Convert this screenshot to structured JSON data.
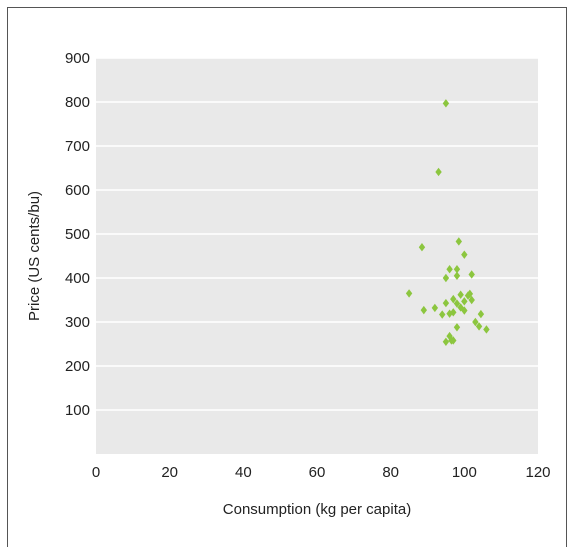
{
  "chart_data": {
    "type": "scatter",
    "title": "",
    "xlabel": "Consumption (kg per capita)",
    "ylabel": "Price (US cents/bu)",
    "xlim": [
      0,
      120
    ],
    "ylim": [
      0,
      900
    ],
    "x_ticks": [
      0,
      20,
      40,
      60,
      80,
      100,
      120
    ],
    "y_ticks": [
      100,
      200,
      300,
      400,
      500,
      600,
      700,
      800,
      900
    ],
    "grid": "horizontal",
    "legend": "none",
    "marker": "diamond",
    "series": [
      {
        "color": "#8cc63f",
        "points": [
          [
            95,
            797
          ],
          [
            93,
            641
          ],
          [
            88.5,
            470
          ],
          [
            98.5,
            483
          ],
          [
            96,
            420
          ],
          [
            98,
            420
          ],
          [
            100,
            453
          ],
          [
            95,
            400
          ],
          [
            98,
            405
          ],
          [
            102,
            408
          ],
          [
            85,
            365
          ],
          [
            89,
            327
          ],
          [
            92,
            332
          ],
          [
            94,
            317
          ],
          [
            95,
            343
          ],
          [
            96,
            319
          ],
          [
            97,
            322
          ],
          [
            97,
            352
          ],
          [
            98,
            342
          ],
          [
            99,
            362
          ],
          [
            99,
            333
          ],
          [
            100,
            347
          ],
          [
            100,
            326
          ],
          [
            101,
            360
          ],
          [
            101.5,
            364
          ],
          [
            102,
            350
          ],
          [
            103,
            300
          ],
          [
            104,
            290
          ],
          [
            104.5,
            318
          ],
          [
            106,
            283
          ],
          [
            98,
            288
          ],
          [
            96,
            268
          ],
          [
            95,
            255
          ],
          [
            96.5,
            258
          ],
          [
            97,
            258
          ]
        ]
      }
    ]
  }
}
